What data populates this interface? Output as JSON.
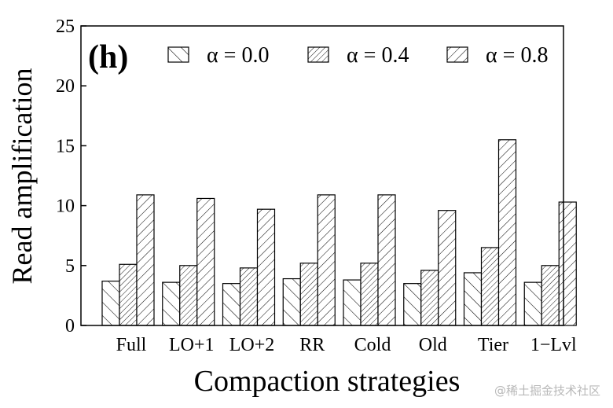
{
  "chart_data": {
    "type": "bar",
    "panel_label": "(h)",
    "xlabel": "Compaction strategies",
    "ylabel": "Read amplification",
    "ylim": [
      0,
      25
    ],
    "yticks": [
      0,
      5,
      10,
      15,
      20,
      25
    ],
    "categories": [
      "Full",
      "LO+1",
      "LO+2",
      "RR",
      "Cold",
      "Old",
      "Tier",
      "1−Lvl"
    ],
    "series": [
      {
        "name": "α = 0.0",
        "pattern": "backslash",
        "values": [
          3.7,
          3.6,
          3.5,
          3.9,
          3.8,
          3.5,
          4.4,
          3.6
        ]
      },
      {
        "name": "α = 0.4",
        "pattern": "slash-dense",
        "values": [
          5.1,
          5.0,
          4.8,
          5.2,
          5.2,
          4.6,
          6.5,
          5.0
        ]
      },
      {
        "name": "α = 0.8",
        "pattern": "slash",
        "values": [
          10.9,
          10.6,
          9.7,
          10.9,
          10.9,
          9.6,
          15.5,
          10.3
        ]
      }
    ],
    "legend_position": "top"
  },
  "watermark": "@稀土掘金技术社区",
  "colors": {
    "ink": "#000000",
    "watermark": "#b8b8b8",
    "background": "#ffffff"
  }
}
